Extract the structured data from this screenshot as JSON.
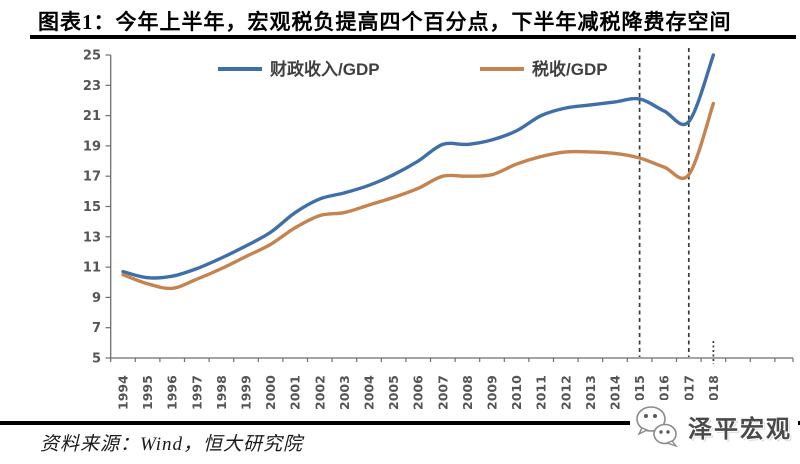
{
  "title": "图表1：今年上半年，宏观税负提高四个百分点，下半年减税降费存空间",
  "source_note": "资料来源：Wind，恒大研究院",
  "logo": {
    "text": "泽平宏观",
    "icon": "wechat-icon"
  },
  "colors": {
    "fiscal_line": "#3F6FA8",
    "tax_line": "#C4834F",
    "axis": "#6e6e6e",
    "tick_label": "#555555",
    "legend_label": "#3f3f3f",
    "dashed_line": "#3a3a3a",
    "rule": "#000000"
  },
  "chart_data": {
    "type": "line",
    "title": "",
    "xlabel": "",
    "ylabel": "",
    "x": [
      "1994",
      "1995",
      "1996",
      "1997",
      "1998",
      "1999",
      "2000",
      "2001",
      "2002",
      "2003",
      "2004",
      "2005",
      "2006",
      "2007",
      "2008",
      "2009",
      "2010",
      "2011",
      "2012",
      "2013",
      "2014",
      "2015",
      "2016",
      "2017",
      "2018"
    ],
    "series": [
      {
        "name": "财政收入/GDP",
        "color": "#3F6FA8",
        "values": [
          10.7,
          10.3,
          10.4,
          10.9,
          11.6,
          12.4,
          13.3,
          14.6,
          15.5,
          15.9,
          16.4,
          17.1,
          18.0,
          19.1,
          19.1,
          19.4,
          20.0,
          21.0,
          21.5,
          21.7,
          21.9,
          22.1,
          21.3,
          20.6,
          25.0
        ]
      },
      {
        "name": "税收/GDP",
        "color": "#C4834F",
        "values": [
          10.5,
          9.9,
          9.6,
          10.2,
          10.9,
          11.7,
          12.5,
          13.6,
          14.4,
          14.6,
          15.1,
          15.6,
          16.2,
          17.0,
          17.0,
          17.1,
          17.8,
          18.3,
          18.6,
          18.6,
          18.5,
          18.2,
          17.6,
          17.1,
          21.8
        ]
      }
    ],
    "ylim": [
      5,
      25
    ],
    "ytick_step": 2,
    "yticks": [
      "5",
      "7",
      "9",
      "11",
      "13",
      "15",
      "17",
      "19",
      "21",
      "23",
      "25"
    ],
    "grid": false,
    "legend_position": "top-inside",
    "annotations": {
      "dashed_vlines_at_years": [
        "2015",
        "2017"
      ],
      "dotted_axis_tick_at_year": "2018"
    }
  }
}
